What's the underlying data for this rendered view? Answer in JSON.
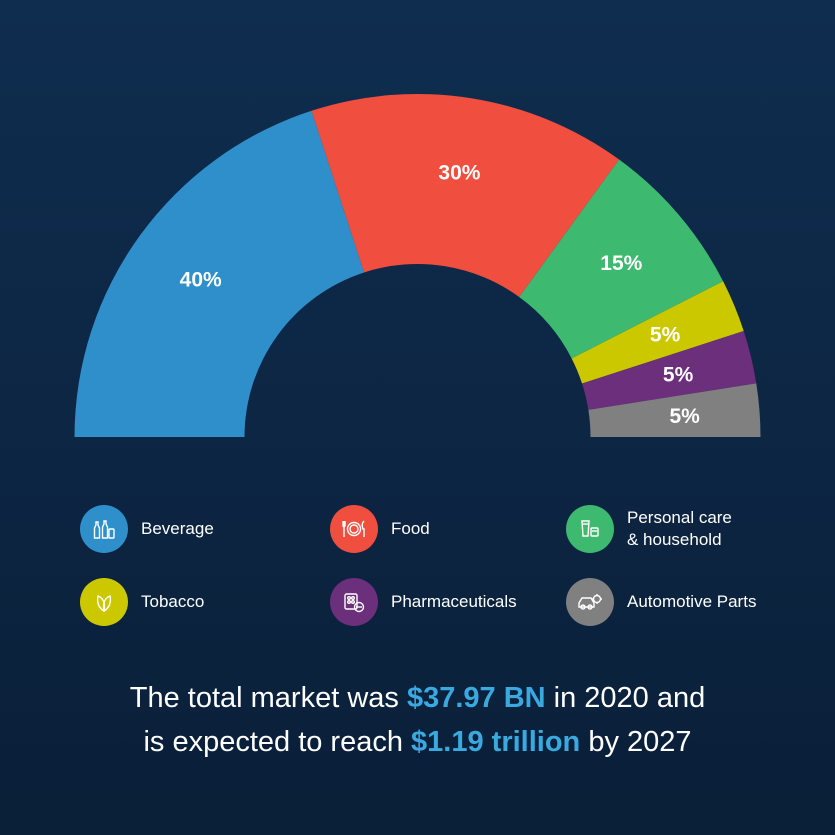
{
  "chart_data": {
    "type": "pie",
    "variant": "semi-donut",
    "categories": [
      "Beverage",
      "Food",
      "Personal care\n& household",
      "Tobacco",
      "Pharmaceuticals",
      "Automotive Parts"
    ],
    "values": [
      40,
      30,
      15,
      5,
      5,
      5
    ],
    "labels": [
      "40%",
      "30%",
      "15%",
      "5%",
      "5%",
      "5%"
    ],
    "colors": [
      "#2f8fcb",
      "#f04e3e",
      "#3dba6f",
      "#cbc800",
      "#6b2f7c",
      "#808080"
    ],
    "legend_placement": "bottom"
  },
  "legend": {
    "items": [
      {
        "label": "Beverage",
        "icon": "bottles-icon",
        "color": "#2f8fcb"
      },
      {
        "label": "Food",
        "icon": "plate-cutlery-icon",
        "color": "#f04e3e"
      },
      {
        "label": "Personal care\n& household",
        "icon": "toiletries-icon",
        "color": "#3dba6f"
      },
      {
        "label": "Tobacco",
        "icon": "leaves-icon",
        "color": "#cbc800"
      },
      {
        "label": "Pharmaceuticals",
        "icon": "pills-icon",
        "color": "#6b2f7c"
      },
      {
        "label": "Automotive Parts",
        "icon": "car-gear-icon",
        "color": "#808080"
      }
    ]
  },
  "summary": {
    "line1_pre": "The total market was ",
    "line1_value": "$37.97 BN",
    "line1_post": " in 2020 and",
    "line2_pre": "is expected to reach ",
    "line2_value": "$1.19 trillion",
    "line2_post": " by 2027"
  }
}
